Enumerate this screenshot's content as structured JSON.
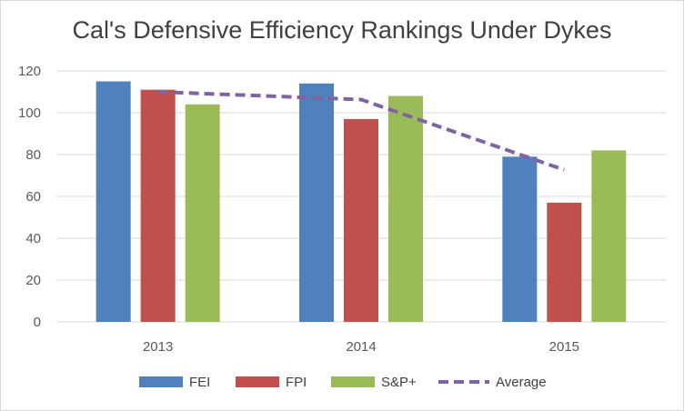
{
  "title": "Cal's Defensive Efficiency Rankings Under Dykes",
  "chart_data": {
    "type": "bar",
    "title": "Cal's Defensive Efficiency Rankings Under Dykes",
    "categories": [
      "2013",
      "2014",
      "2015"
    ],
    "series": [
      {
        "name": "FEI",
        "type": "bar",
        "color": "#4F81BD",
        "values": [
          115,
          114,
          79
        ]
      },
      {
        "name": "FPI",
        "type": "bar",
        "color": "#C0504D",
        "values": [
          111,
          97,
          57
        ]
      },
      {
        "name": "S&P+",
        "type": "bar",
        "color": "#9BBB59",
        "values": [
          104,
          108,
          82
        ]
      },
      {
        "name": "Average",
        "type": "line",
        "style": "dashed",
        "color": "#8064A2",
        "values": [
          110,
          106.3,
          72.7
        ]
      }
    ],
    "ylim": [
      0,
      120
    ],
    "yticks": [
      "0",
      "20",
      "40",
      "60",
      "80",
      "100",
      "120"
    ],
    "grid": true,
    "legend": "bottom"
  }
}
